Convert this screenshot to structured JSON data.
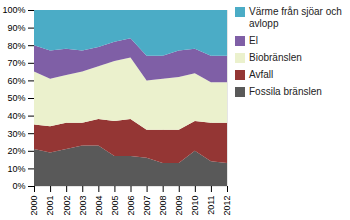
{
  "chart_data": {
    "type": "area",
    "stacked": true,
    "x": [
      2000,
      2001,
      2002,
      2003,
      2004,
      2005,
      2006,
      2007,
      2008,
      2009,
      2010,
      2011,
      2012
    ],
    "series": [
      {
        "name": "Fossila bränslen",
        "color": "#595959",
        "values": [
          21,
          19,
          21,
          23,
          23,
          17,
          17,
          16,
          13,
          13,
          20,
          14,
          13
        ]
      },
      {
        "name": "Avfall",
        "color": "#943634",
        "values": [
          14,
          15,
          15,
          13,
          15,
          20,
          21,
          16,
          19,
          19,
          17,
          22,
          23
        ]
      },
      {
        "name": "Biobränslen",
        "color": "#ebf1cd",
        "values": [
          30,
          27,
          27,
          29,
          30,
          34,
          35,
          28,
          29,
          30,
          27,
          23,
          23
        ]
      },
      {
        "name": "El",
        "color": "#7f5fa6",
        "values": [
          15,
          16,
          15,
          12,
          11,
          11,
          11,
          14,
          13,
          15,
          14,
          15,
          15
        ]
      },
      {
        "name": "Värme från sjöar och\navlopp",
        "color": "#4bacc6",
        "values": [
          20,
          23,
          22,
          23,
          21,
          18,
          16,
          26,
          26,
          23,
          22,
          26,
          26
        ]
      }
    ],
    "xlim": [
      2000,
      2012
    ],
    "xticks": [
      2000,
      2001,
      2002,
      2003,
      2004,
      2005,
      2006,
      2007,
      2008,
      2009,
      2010,
      2011,
      2012
    ],
    "ylim": [
      0,
      100
    ],
    "yticks": [
      {
        "value": 0,
        "label": "0%"
      },
      {
        "value": 10,
        "label": "10%"
      },
      {
        "value": 20,
        "label": "20%"
      },
      {
        "value": 30,
        "label": "30%"
      },
      {
        "value": 40,
        "label": "40%"
      },
      {
        "value": 50,
        "label": "50%"
      },
      {
        "value": 60,
        "label": "60%"
      },
      {
        "value": 70,
        "label": "70%"
      },
      {
        "value": 80,
        "label": "80%"
      },
      {
        "value": 90,
        "label": "90%"
      },
      {
        "value": 100,
        "label": "100%"
      }
    ],
    "grid": true,
    "legend": "right"
  }
}
